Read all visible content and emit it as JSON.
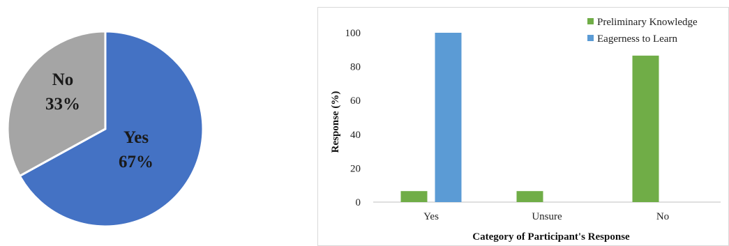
{
  "chart_data": [
    {
      "type": "pie",
      "slices": [
        {
          "label": "Yes",
          "value": 67,
          "value_label": "67%",
          "color": "#4472C4"
        },
        {
          "label": "No",
          "value": 33,
          "value_label": "33%",
          "color": "#A5A5A5"
        }
      ]
    },
    {
      "type": "bar",
      "categories": [
        "Yes",
        "Unsure",
        "No"
      ],
      "series": [
        {
          "name": "Preliminary Knowledge",
          "values": [
            6.5,
            6.5,
            86.5
          ],
          "color": "#70AD47"
        },
        {
          "name": "Eagerness to Learn",
          "values": [
            100,
            0,
            0
          ],
          "color": "#5B9BD5"
        }
      ],
      "xlabel": "Category of Participant's Response",
      "ylabel": "Response (%)",
      "ylim": [
        0,
        100
      ],
      "yticks": [
        0,
        20,
        40,
        60,
        80,
        100
      ],
      "grid": false,
      "legend_position": "top-right"
    }
  ]
}
